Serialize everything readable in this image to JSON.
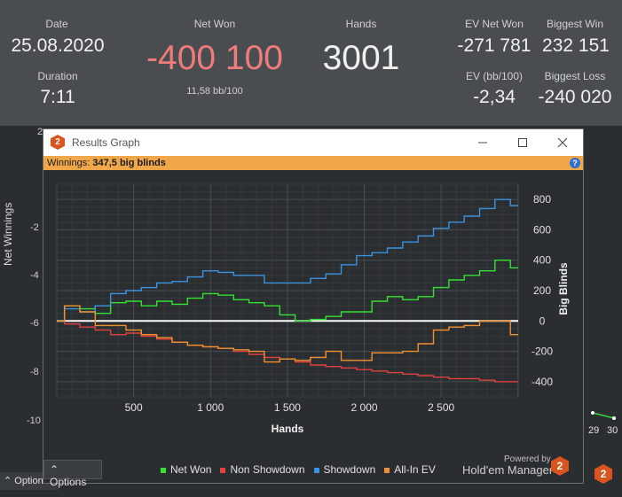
{
  "stats": {
    "date_label": "Date",
    "date_value": "25.08.2020",
    "duration_label": "Duration",
    "duration_value": "7:11",
    "net_won_label": "Net Won",
    "net_won_value": "-400 100",
    "net_won_sub": "11,58 bb/100",
    "hands_label": "Hands",
    "hands_value": "3001",
    "ev_net_won_label": "EV Net Won",
    "ev_net_won_value": "-271 781",
    "ev_bb_label": "EV (bb/100)",
    "ev_bb_value": "-2,34",
    "biggest_win_label": "Biggest Win",
    "biggest_win_value": "232 151",
    "biggest_loss_label": "Biggest Loss",
    "biggest_loss_value": "-240 020",
    "net_won_color": "#f07b7b"
  },
  "background": {
    "axis_title": "Net Winnings",
    "ticks": [
      "2",
      "-2",
      "-4",
      "-6",
      "-8",
      "-10"
    ],
    "right_ticks": [
      "29",
      "30"
    ],
    "options_label": "Options",
    "brand_fragment": "er"
  },
  "dialog": {
    "title": "Results Graph",
    "logo": "2",
    "minimize_icon": "minimize-icon",
    "maximize_icon": "maximize-icon",
    "close_icon": "close-icon",
    "info_label": "Winnings:",
    "info_value": "347,5 big blinds",
    "help": "?",
    "options_label": "Options",
    "powered_by": "Powered by",
    "brand": "Hold'em Manager"
  },
  "chart_data": {
    "type": "line",
    "xlabel": "Hands",
    "ylabel": "Big Blinds",
    "xlim": [
      0,
      3001
    ],
    "ylim": [
      -500,
      900
    ],
    "x_ticks": [
      500,
      1000,
      1500,
      2000,
      2500
    ],
    "x_tick_labels": [
      "500",
      "1 000",
      "1 500",
      "2 000",
      "2 500"
    ],
    "y_ticks": [
      800,
      600,
      400,
      200,
      0,
      -200,
      -400
    ],
    "y_tick_labels": [
      "800",
      "600",
      "400",
      "200",
      "0",
      "-200",
      "-400"
    ],
    "grid": true,
    "legend_position": "bottom",
    "x": [
      0,
      100,
      200,
      300,
      400,
      500,
      600,
      700,
      800,
      900,
      1000,
      1100,
      1200,
      1300,
      1400,
      1500,
      1600,
      1700,
      1800,
      1900,
      2000,
      2100,
      2200,
      2300,
      2400,
      2500,
      2600,
      2700,
      2800,
      2900,
      3000
    ],
    "series": [
      {
        "name": "Net Won",
        "color": "#33e033",
        "values": [
          0,
          100,
          80,
          50,
          120,
          130,
          100,
          130,
          110,
          150,
          180,
          170,
          140,
          120,
          100,
          40,
          0,
          10,
          30,
          60,
          60,
          130,
          160,
          140,
          160,
          220,
          270,
          300,
          330,
          400,
          350
        ]
      },
      {
        "name": "Non Showdown",
        "color": "#e04040",
        "values": [
          0,
          -20,
          -40,
          -60,
          -90,
          -80,
          -100,
          -120,
          -140,
          -160,
          -170,
          -180,
          -200,
          -220,
          -240,
          -250,
          -270,
          -290,
          -300,
          -310,
          -320,
          -330,
          -340,
          -350,
          -360,
          -370,
          -380,
          -380,
          -390,
          -400,
          -400
        ]
      },
      {
        "name": "Showdown",
        "color": "#3a93e0",
        "values": [
          0,
          80,
          60,
          100,
          180,
          200,
          220,
          250,
          260,
          290,
          330,
          320,
          300,
          300,
          250,
          250,
          250,
          280,
          310,
          370,
          430,
          450,
          480,
          520,
          560,
          610,
          650,
          690,
          740,
          800,
          760
        ]
      },
      {
        "name": "All-In EV",
        "color": "#f09030",
        "values": [
          0,
          100,
          60,
          -30,
          -30,
          -60,
          -90,
          -110,
          -140,
          -160,
          -170,
          -180,
          -190,
          -200,
          -270,
          -250,
          -260,
          -240,
          -200,
          -260,
          -260,
          -210,
          -210,
          -200,
          -150,
          -60,
          -40,
          -30,
          0,
          0,
          -90
        ]
      }
    ]
  }
}
